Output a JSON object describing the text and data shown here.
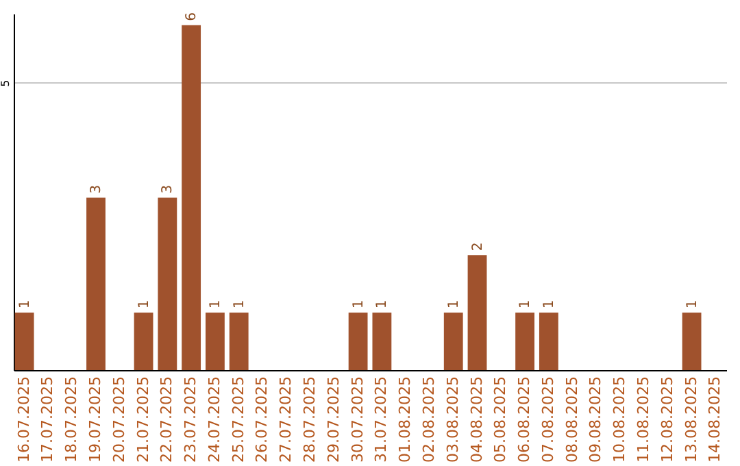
{
  "chart_data": {
    "type": "bar",
    "categories": [
      "16.07.2025",
      "17.07.2025",
      "18.07.2025",
      "19.07.2025",
      "20.07.2025",
      "21.07.2025",
      "22.07.2025",
      "23.07.2025",
      "24.07.2025",
      "25.07.2025",
      "26.07.2025",
      "27.07.2025",
      "28.07.2025",
      "29.07.2025",
      "30.07.2025",
      "31.07.2025",
      "01.08.2025",
      "02.08.2025",
      "03.08.2025",
      "04.08.2025",
      "05.08.2025",
      "06.08.2025",
      "07.08.2025",
      "08.08.2025",
      "09.08.2025",
      "10.08.2025",
      "11.08.2025",
      "12.08.2025",
      "13.08.2025",
      "14.08.2025"
    ],
    "values": [
      1,
      0,
      0,
      3,
      0,
      1,
      3,
      6,
      1,
      1,
      0,
      0,
      0,
      0,
      1,
      1,
      0,
      0,
      1,
      2,
      0,
      1,
      1,
      0,
      0,
      0,
      0,
      0,
      1,
      0
    ],
    "value_labels": [
      "1",
      null,
      null,
      "3",
      null,
      "1",
      "3",
      "6",
      "1",
      "1",
      null,
      null,
      null,
      null,
      "1",
      "1",
      null,
      null,
      "1",
      "2",
      null,
      "1",
      "1",
      null,
      null,
      null,
      null,
      null,
      "1",
      null
    ],
    "color": "#a0522d",
    "ylim": [
      0,
      6.2
    ],
    "yticks": [
      5
    ],
    "grid": "y"
  }
}
